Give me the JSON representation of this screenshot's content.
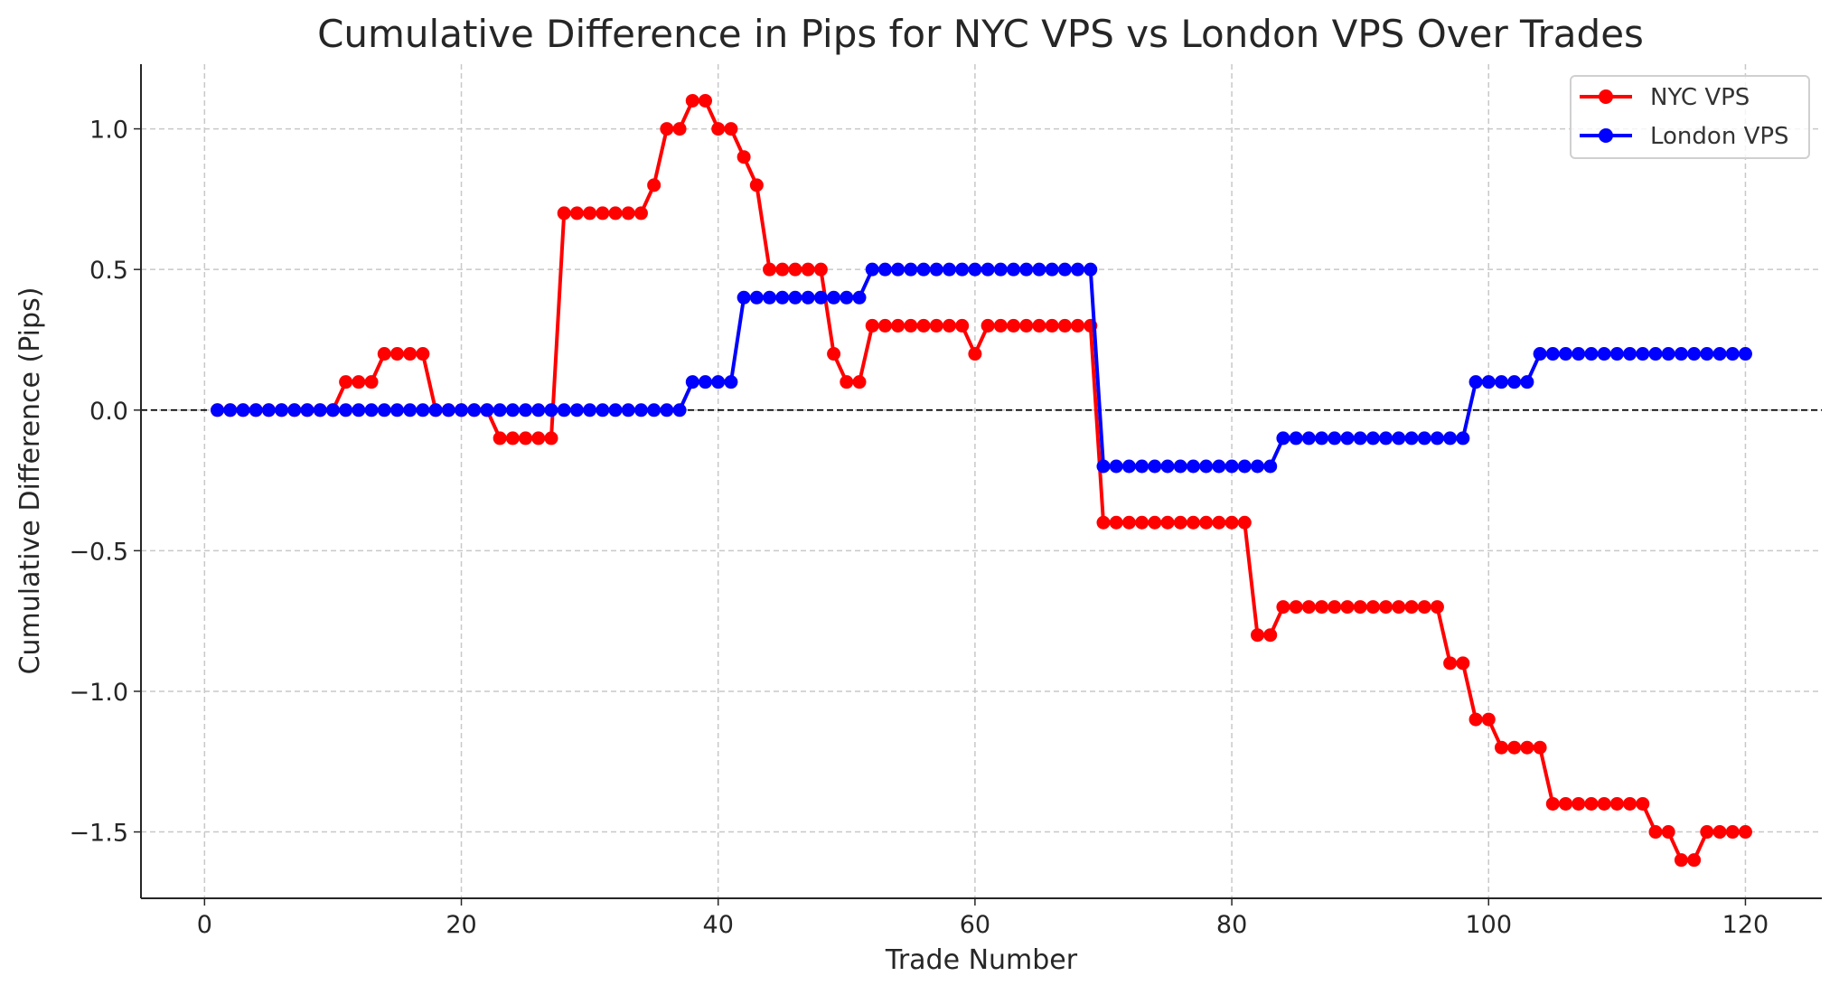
{
  "chart_data": {
    "type": "line",
    "title": "Cumulative Difference in Pips for NYC VPS vs London VPS Over Trades",
    "xlabel": "Trade Number",
    "ylabel": "Cumulative Difference (Pips)",
    "xlim": [
      -4.95,
      125.95
    ],
    "ylim": [
      -1.736,
      1.23
    ],
    "xticks": [
      0,
      20,
      40,
      60,
      80,
      100,
      120
    ],
    "xtick_labels": [
      "0",
      "20",
      "40",
      "60",
      "80",
      "100",
      "120"
    ],
    "yticks": [
      1.0,
      0.5,
      0.0,
      -0.5,
      -1.0,
      -1.5
    ],
    "ytick_labels": [
      "1.0",
      "0.5",
      "0.0",
      "−0.5",
      "−1.0",
      "−1.5"
    ],
    "grid": true,
    "reference_line": 0,
    "legend_position": "top-right",
    "x": [
      1,
      2,
      3,
      4,
      5,
      6,
      7,
      8,
      9,
      10,
      11,
      12,
      13,
      14,
      15,
      16,
      17,
      18,
      19,
      20,
      21,
      22,
      23,
      24,
      25,
      26,
      27,
      28,
      29,
      30,
      31,
      32,
      33,
      34,
      35,
      36,
      37,
      38,
      39,
      40,
      41,
      42,
      43,
      44,
      45,
      46,
      47,
      48,
      49,
      50,
      51,
      52,
      53,
      54,
      55,
      56,
      57,
      58,
      59,
      60,
      61,
      62,
      63,
      64,
      65,
      66,
      67,
      68,
      69,
      70,
      71,
      72,
      73,
      74,
      75,
      76,
      77,
      78,
      79,
      80,
      81,
      82,
      83,
      84,
      85,
      86,
      87,
      88,
      89,
      90,
      91,
      92,
      93,
      94,
      95,
      96,
      97,
      98,
      99,
      100,
      101,
      102,
      103,
      104,
      105,
      106,
      107,
      108,
      109,
      110,
      111,
      112,
      113,
      114,
      115,
      116,
      117,
      118,
      119,
      120
    ],
    "series": [
      {
        "name": "NYC VPS",
        "color": "#ff0000",
        "values": [
          0,
          0,
          0,
          0,
          0,
          0,
          0,
          0,
          0,
          0,
          0.1,
          0.1,
          0.1,
          0.2,
          0.2,
          0.2,
          0.2,
          0,
          0,
          0,
          0,
          0,
          -0.1,
          -0.1,
          -0.1,
          -0.1,
          -0.1,
          0.7,
          0.7,
          0.7,
          0.7,
          0.7,
          0.7,
          0.7,
          0.8,
          1.0,
          1.0,
          1.1,
          1.1,
          1.0,
          1.0,
          0.9,
          0.8,
          0.5,
          0.5,
          0.5,
          0.5,
          0.5,
          0.2,
          0.1,
          0.1,
          0.3,
          0.3,
          0.3,
          0.3,
          0.3,
          0.3,
          0.3,
          0.3,
          0.2,
          0.3,
          0.3,
          0.3,
          0.3,
          0.3,
          0.3,
          0.3,
          0.3,
          0.3,
          -0.4,
          -0.4,
          -0.4,
          -0.4,
          -0.4,
          -0.4,
          -0.4,
          -0.4,
          -0.4,
          -0.4,
          -0.4,
          -0.4,
          -0.8,
          -0.8,
          -0.7,
          -0.7,
          -0.7,
          -0.7,
          -0.7,
          -0.7,
          -0.7,
          -0.7,
          -0.7,
          -0.7,
          -0.7,
          -0.7,
          -0.7,
          -0.9,
          -0.9,
          -1.1,
          -1.1,
          -1.2,
          -1.2,
          -1.2,
          -1.2,
          -1.4,
          -1.4,
          -1.4,
          -1.4,
          -1.4,
          -1.4,
          -1.4,
          -1.4,
          -1.5,
          -1.5,
          -1.6,
          -1.6,
          -1.5,
          -1.5,
          -1.5,
          -1.5
        ]
      },
      {
        "name": "London VPS",
        "color": "#0000ff",
        "values": [
          0,
          0,
          0,
          0,
          0,
          0,
          0,
          0,
          0,
          0,
          0,
          0,
          0,
          0,
          0,
          0,
          0,
          0,
          0,
          0,
          0,
          0,
          0,
          0,
          0,
          0,
          0,
          0,
          0,
          0,
          0,
          0,
          0,
          0,
          0,
          0,
          0,
          0.1,
          0.1,
          0.1,
          0.1,
          0.4,
          0.4,
          0.4,
          0.4,
          0.4,
          0.4,
          0.4,
          0.4,
          0.4,
          0.4,
          0.5,
          0.5,
          0.5,
          0.5,
          0.5,
          0.5,
          0.5,
          0.5,
          0.5,
          0.5,
          0.5,
          0.5,
          0.5,
          0.5,
          0.5,
          0.5,
          0.5,
          0.5,
          -0.2,
          -0.2,
          -0.2,
          -0.2,
          -0.2,
          -0.2,
          -0.2,
          -0.2,
          -0.2,
          -0.2,
          -0.2,
          -0.2,
          -0.2,
          -0.2,
          -0.1,
          -0.1,
          -0.1,
          -0.1,
          -0.1,
          -0.1,
          -0.1,
          -0.1,
          -0.1,
          -0.1,
          -0.1,
          -0.1,
          -0.1,
          -0.1,
          -0.1,
          0.1,
          0.1,
          0.1,
          0.1,
          0.1,
          0.2,
          0.2,
          0.2,
          0.2,
          0.2,
          0.2,
          0.2,
          0.2,
          0.2,
          0.2,
          0.2,
          0.2,
          0.2,
          0.2,
          0.2,
          0.2,
          0.2
        ]
      }
    ]
  }
}
